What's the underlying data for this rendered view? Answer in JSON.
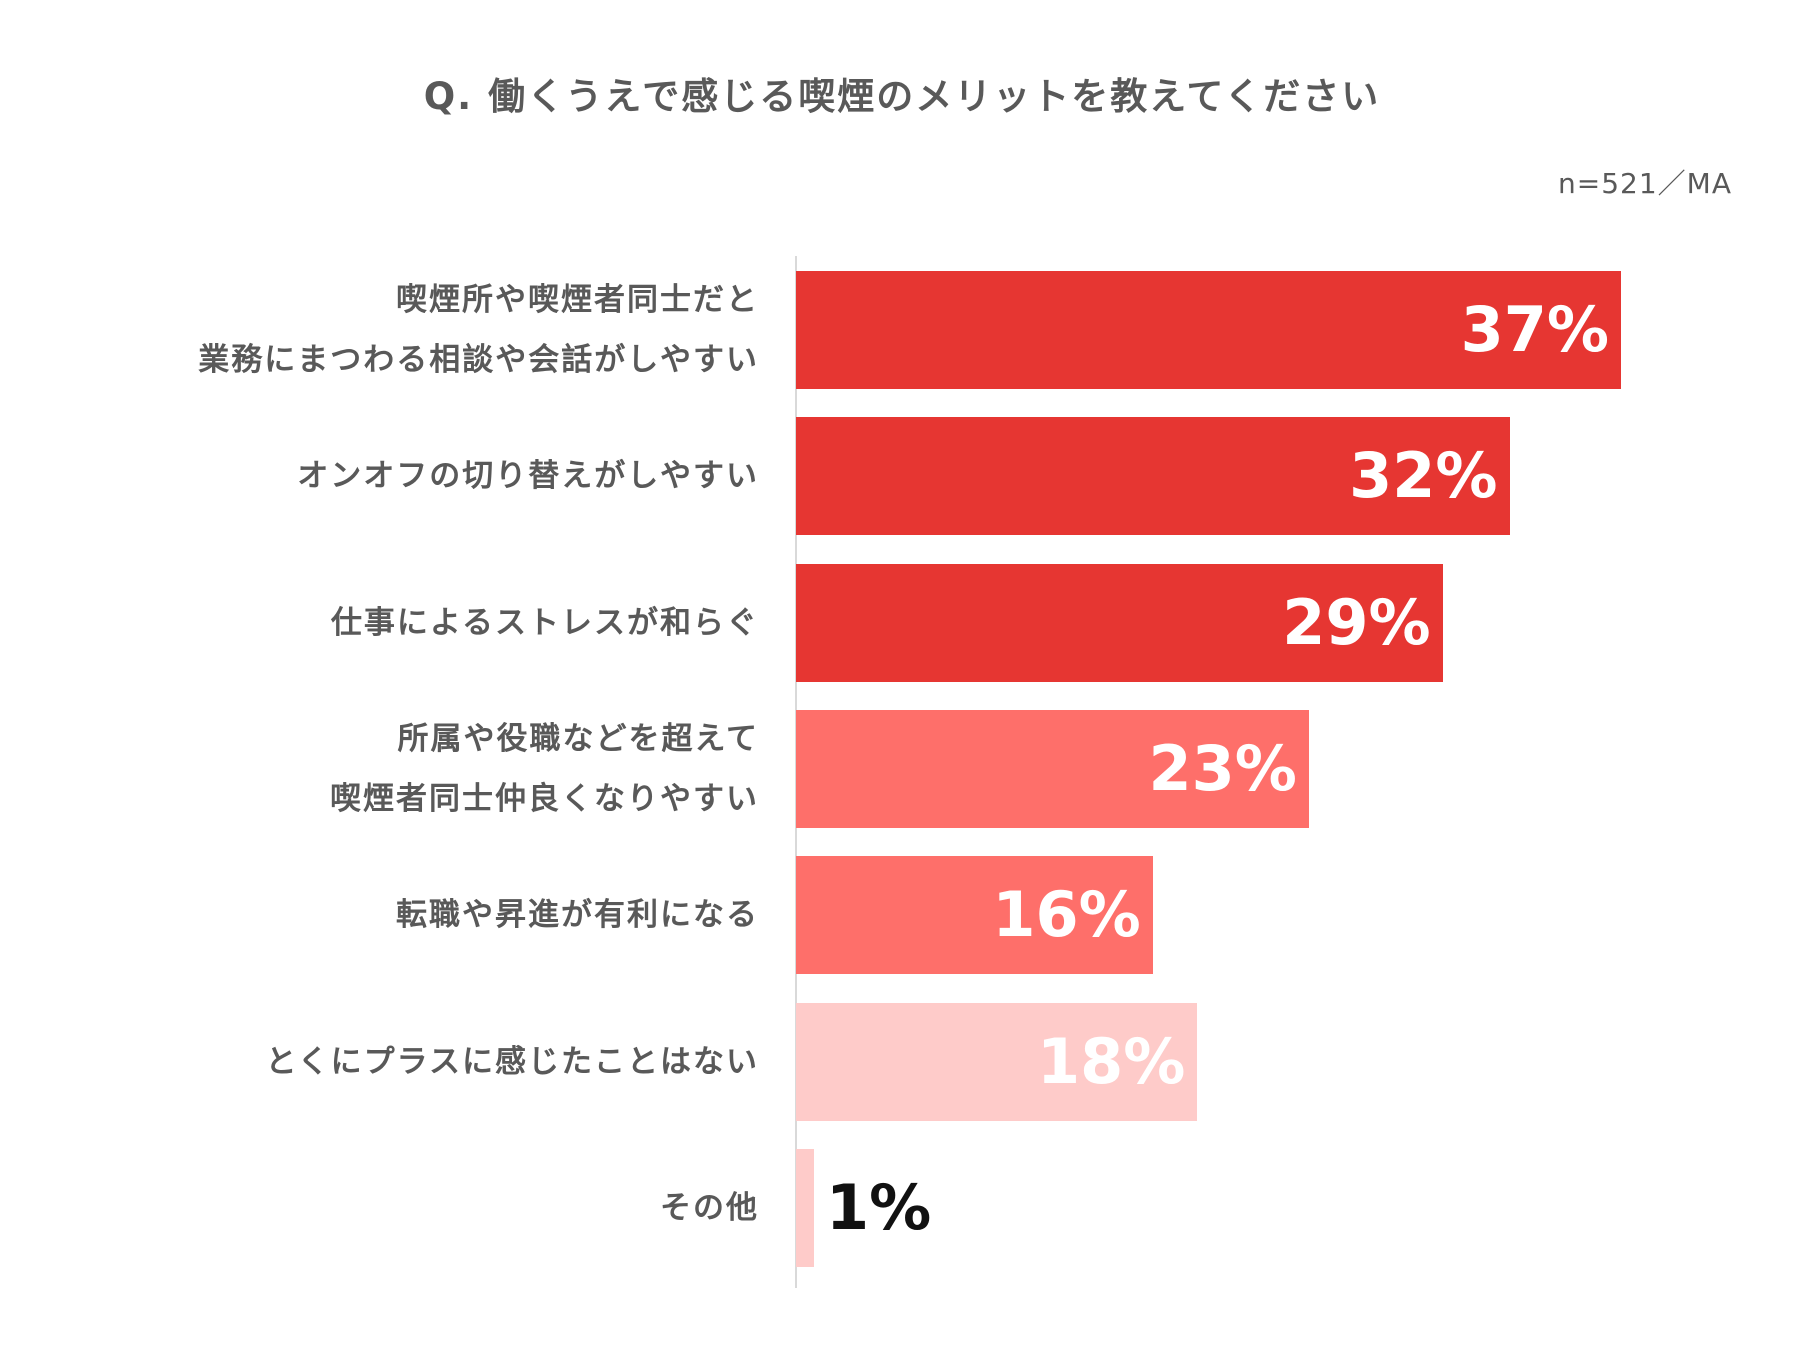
{
  "header": {
    "title": "Q.  働くうえで感じる喫煙のメリットを教えてください",
    "note": "n=521／MA"
  },
  "colors": {
    "dark_red": "#e63632",
    "mid_red": "#fe6f6a",
    "light_red": "#fecbc9",
    "text_gray": "#595959",
    "value_white": "#ffffff",
    "value_black": "#111111"
  },
  "chart_data": {
    "type": "bar",
    "orientation": "horizontal",
    "categories": [
      [
        "喫煙所や喫煙者同士だと",
        "業務にまつわる相談や会話がしやすい"
      ],
      [
        "オンオフの切り替えがしやすい"
      ],
      [
        "仕事によるストレスが和らぐ"
      ],
      [
        "所属や役職などを超えて",
        "喫煙者同士仲良くなりやすい"
      ],
      [
        "転職や昇進が有利になる"
      ],
      [
        "とくにプラスに感じたことはない"
      ],
      [
        "その他"
      ]
    ],
    "values": [
      37,
      32,
      29,
      23,
      16,
      18,
      1
    ],
    "value_labels": [
      "37%",
      "32%",
      "29%",
      "23%",
      "16%",
      "18%",
      "1%"
    ],
    "bar_colors": [
      "#e63632",
      "#e63632",
      "#e63632",
      "#fe6f6a",
      "#fe6f6a",
      "#fecbc9",
      "#fecbc9"
    ],
    "xlim": [
      0,
      37
    ],
    "grid": false,
    "legend": "none"
  }
}
